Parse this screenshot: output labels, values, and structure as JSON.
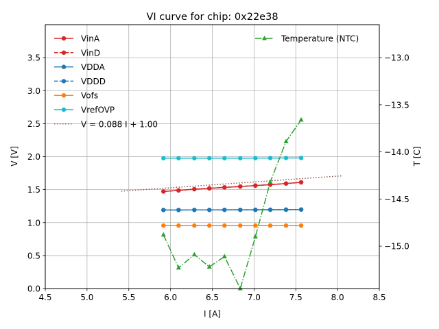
{
  "chart_data": {
    "type": "line",
    "title": "VI curve for chip: 0x22e38",
    "xlabel": "I [A]",
    "ylabel": "V [V]",
    "y2label": "T [C]",
    "xlim": [
      4.5,
      8.5
    ],
    "ylim": [
      0.0,
      4.0
    ],
    "y2lim": [
      -15.45,
      -12.65
    ],
    "xticks": [
      4.5,
      5.0,
      5.5,
      6.0,
      6.5,
      7.0,
      7.5,
      8.0,
      8.5
    ],
    "xtick_labels": [
      "4.5",
      "5.0",
      "5.5",
      "6.0",
      "6.5",
      "7.0",
      "7.5",
      "8.0",
      "8.5"
    ],
    "yticks": [
      0.0,
      0.5,
      1.0,
      1.5,
      2.0,
      2.5,
      3.0,
      3.5
    ],
    "ytick_labels": [
      "0.0",
      "0.5",
      "1.0",
      "1.5",
      "2.0",
      "2.5",
      "3.0",
      "3.5"
    ],
    "y2ticks": [
      -15.0,
      -14.5,
      -14.0,
      -13.5,
      -13.0
    ],
    "y2tick_labels": [
      "−15.0",
      "−14.5",
      "−14.0",
      "−13.5",
      "−13.0"
    ],
    "grid": true,
    "x": [
      5.915,
      6.096,
      6.285,
      6.465,
      6.646,
      6.835,
      7.016,
      7.194,
      7.383,
      7.564
    ],
    "series": [
      {
        "name": "VinA",
        "color": "#d62728",
        "style": "solid",
        "marker": "circle",
        "axis": "left",
        "values": [
          1.471,
          1.488,
          1.506,
          1.519,
          1.534,
          1.547,
          1.561,
          1.575,
          1.592,
          1.61
        ]
      },
      {
        "name": "VinD",
        "color": "#d62728",
        "style": "dashed",
        "marker": "circle",
        "axis": "left",
        "values": [
          1.471,
          1.488,
          1.506,
          1.519,
          1.534,
          1.547,
          1.561,
          1.575,
          1.592,
          1.61
        ]
      },
      {
        "name": "VDDA",
        "color": "#1f77b4",
        "style": "solid",
        "marker": "circle",
        "axis": "left",
        "values": [
          1.191,
          1.191,
          1.192,
          1.192,
          1.193,
          1.193,
          1.194,
          1.195,
          1.196,
          1.198
        ]
      },
      {
        "name": "VDDD",
        "color": "#1f77b4",
        "style": "dashed",
        "marker": "circle",
        "axis": "left",
        "values": [
          1.191,
          1.191,
          1.192,
          1.192,
          1.193,
          1.193,
          1.194,
          1.195,
          1.196,
          1.198
        ]
      },
      {
        "name": "Vofs",
        "color": "#ff7f0e",
        "style": "solid",
        "marker": "circle",
        "axis": "left",
        "values": [
          0.955,
          0.955,
          0.955,
          0.955,
          0.955,
          0.955,
          0.955,
          0.955,
          0.955,
          0.955
        ]
      },
      {
        "name": "VrefOVP",
        "color": "#17becf",
        "style": "solid",
        "marker": "circle",
        "axis": "left",
        "values": [
          1.976,
          1.976,
          1.976,
          1.976,
          1.976,
          1.976,
          1.977,
          1.978,
          1.979,
          1.98
        ]
      }
    ],
    "fit": {
      "name": "V = 0.088 I + 1.00",
      "color": "#8c564b",
      "style": "dotted",
      "slope": 0.088,
      "intercept": 1.0,
      "x_range": [
        5.41,
        8.05
      ]
    },
    "temperature": {
      "name": "Temperature (NTC)",
      "color": "#2ca02c",
      "style": "dashdot",
      "marker": "triangle",
      "axis": "right",
      "values": [
        -14.88,
        -15.23,
        -15.09,
        -15.22,
        -15.11,
        -15.45,
        -14.9,
        -14.32,
        -13.89,
        -13.66
      ]
    },
    "legend_left": [
      "VinA",
      "VinD",
      "VDDA",
      "VDDD",
      "Vofs",
      "VrefOVP",
      "V = 0.088 I + 1.00"
    ],
    "legend_right": [
      "Temperature (NTC)"
    ],
    "legend_placement": "top-left and top-right"
  }
}
